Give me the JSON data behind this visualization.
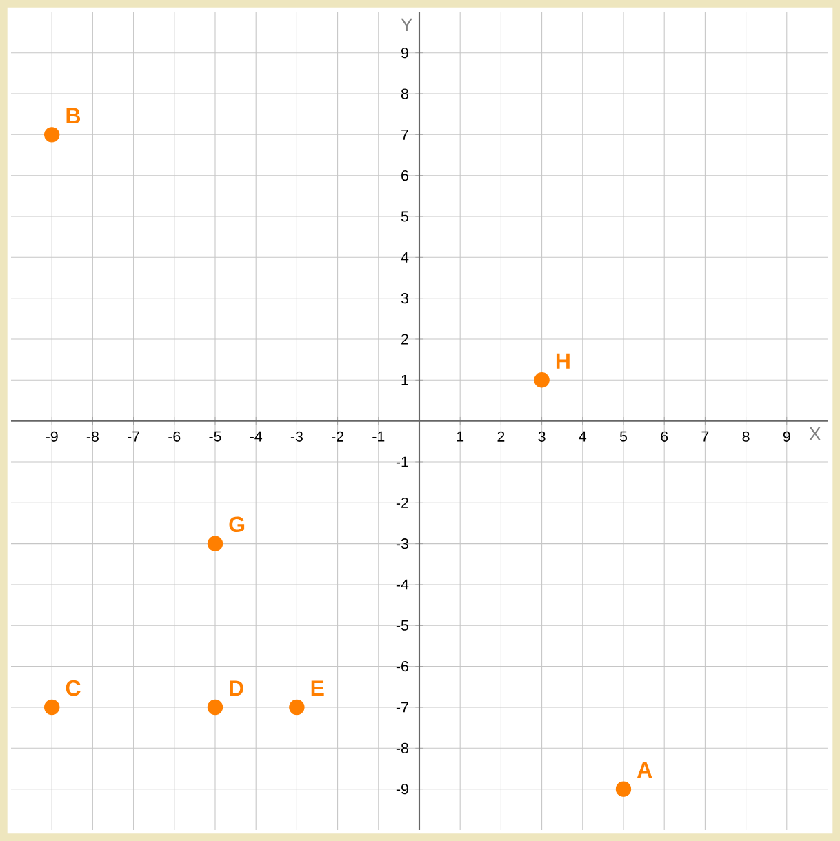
{
  "chart_data": {
    "type": "scatter",
    "xlabel": "X",
    "ylabel": "Y",
    "x": [
      5,
      -9,
      -9,
      -5,
      -3,
      -5,
      3
    ],
    "values": [
      -9,
      7,
      -7,
      -7,
      -7,
      -3,
      1
    ],
    "color": "#ff7f00",
    "marker": "circle",
    "grid": true,
    "xlim": [
      -10,
      10
    ],
    "ylim": [
      -10,
      10
    ],
    "xticks": [
      -9,
      -8,
      -7,
      -6,
      -5,
      -4,
      -3,
      -2,
      -1,
      {
        "value": 0,
        "label": null
      },
      1,
      2,
      3,
      4,
      5,
      6,
      7,
      8,
      9
    ],
    "yticks": [
      -9,
      -8,
      -7,
      -6,
      -5,
      -4,
      -3,
      -2,
      -1,
      {
        "value": 0,
        "label": null
      },
      1,
      2,
      3,
      4,
      5,
      6,
      7,
      8,
      9
    ],
    "annotations": [
      {
        "text": "A",
        "x": 5,
        "y": -9
      },
      {
        "text": "B",
        "x": -9,
        "y": 7
      },
      {
        "text": "C",
        "x": -9,
        "y": -7
      },
      {
        "text": "D",
        "x": -5,
        "y": -7
      },
      {
        "text": "E",
        "x": -3,
        "y": -7
      },
      {
        "text": "G",
        "x": -5,
        "y": -3
      },
      {
        "text": "H",
        "x": 3,
        "y": 1
      }
    ]
  }
}
